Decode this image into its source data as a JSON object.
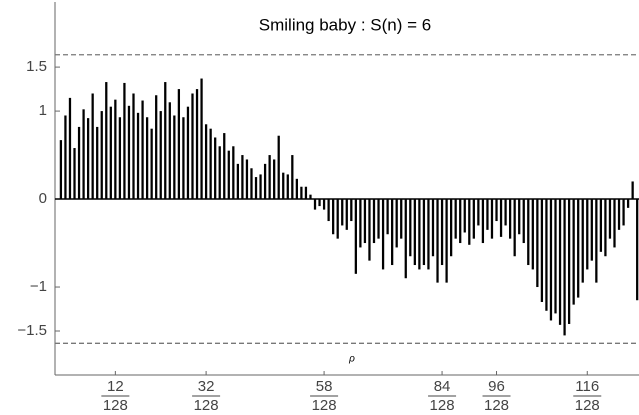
{
  "chart_data": {
    "type": "bar",
    "title": "Smiling baby : S(n) = 6",
    "xlabel": "ρ",
    "x": [
      0,
      1,
      2,
      3,
      4,
      5,
      6,
      7,
      8,
      9,
      10,
      11,
      12,
      13,
      14,
      15,
      16,
      17,
      18,
      19,
      20,
      21,
      22,
      23,
      24,
      25,
      26,
      27,
      28,
      29,
      30,
      31,
      32,
      33,
      34,
      35,
      36,
      37,
      38,
      39,
      40,
      41,
      42,
      43,
      44,
      45,
      46,
      47,
      48,
      49,
      50,
      51,
      52,
      53,
      54,
      55,
      56,
      57,
      58,
      59,
      60,
      61,
      62,
      63,
      64,
      65,
      66,
      67,
      68,
      69,
      70,
      71,
      72,
      73,
      74,
      75,
      76,
      77,
      78,
      79,
      80,
      81,
      82,
      83,
      84,
      85,
      86,
      87,
      88,
      89,
      90,
      91,
      92,
      93,
      94,
      95,
      96,
      97,
      98,
      99,
      100,
      101,
      102,
      103,
      104,
      105,
      106,
      107,
      108,
      109,
      110,
      111,
      112,
      113,
      114,
      115,
      116,
      117,
      118,
      119,
      120,
      121,
      122,
      123,
      124,
      125,
      126,
      127
    ],
    "values": [
      0.67,
      0.95,
      1.15,
      0.58,
      0.82,
      1.02,
      0.92,
      1.2,
      0.82,
      1.0,
      1.33,
      1.05,
      1.13,
      0.93,
      1.32,
      1.06,
      1.2,
      0.98,
      1.12,
      0.93,
      0.8,
      1.18,
      1.0,
      1.33,
      1.1,
      0.95,
      1.25,
      0.93,
      1.05,
      1.2,
      1.25,
      1.37,
      0.85,
      0.8,
      0.7,
      0.6,
      0.75,
      0.55,
      0.6,
      0.4,
      0.5,
      0.45,
      0.35,
      0.25,
      0.28,
      0.4,
      0.5,
      0.45,
      0.72,
      0.3,
      0.28,
      0.5,
      0.23,
      0.14,
      0.14,
      0.05,
      -0.12,
      -0.08,
      -0.12,
      -0.25,
      -0.4,
      -0.45,
      -0.3,
      -0.35,
      -0.25,
      -0.85,
      -0.55,
      -0.5,
      -0.7,
      -0.5,
      -0.45,
      -0.8,
      -0.4,
      -0.75,
      -0.55,
      -0.45,
      -0.9,
      -0.65,
      -0.75,
      -0.8,
      -0.75,
      -0.8,
      -0.65,
      -0.95,
      -0.75,
      -0.95,
      -0.65,
      -0.45,
      -0.5,
      -0.38,
      -0.52,
      -0.45,
      -0.3,
      -0.5,
      -0.35,
      -0.45,
      -0.25,
      -0.43,
      -0.3,
      -0.45,
      -0.65,
      -0.4,
      -0.5,
      -0.75,
      -0.8,
      -1.0,
      -1.17,
      -1.27,
      -1.38,
      -1.3,
      -1.43,
      -1.55,
      -1.42,
      -1.2,
      -1.12,
      -0.95,
      -0.8,
      -0.7,
      -0.95,
      -0.6,
      -0.65,
      -0.45,
      -0.55,
      -0.35,
      -0.3,
      -0.1,
      0.2,
      -1.15
    ],
    "color": "#000000",
    "xlim": [
      -1.3,
      127.4
    ],
    "ylim": [
      -2.0,
      2.24
    ],
    "xticks": [
      {
        "value": 12,
        "label": "12/128"
      },
      {
        "value": 32,
        "label": "32/128"
      },
      {
        "value": 58,
        "label": "58/128"
      },
      {
        "value": 84,
        "label": "84/128"
      },
      {
        "value": 96,
        "label": "96/128"
      },
      {
        "value": 116,
        "label": "116/128"
      }
    ],
    "yticks": [
      1.5,
      1,
      0,
      {
        "value": -1,
        "label": "−1"
      },
      {
        "value": -1.5,
        "label": "−1.5"
      }
    ],
    "hlines": [
      1.64,
      -1.64
    ]
  }
}
